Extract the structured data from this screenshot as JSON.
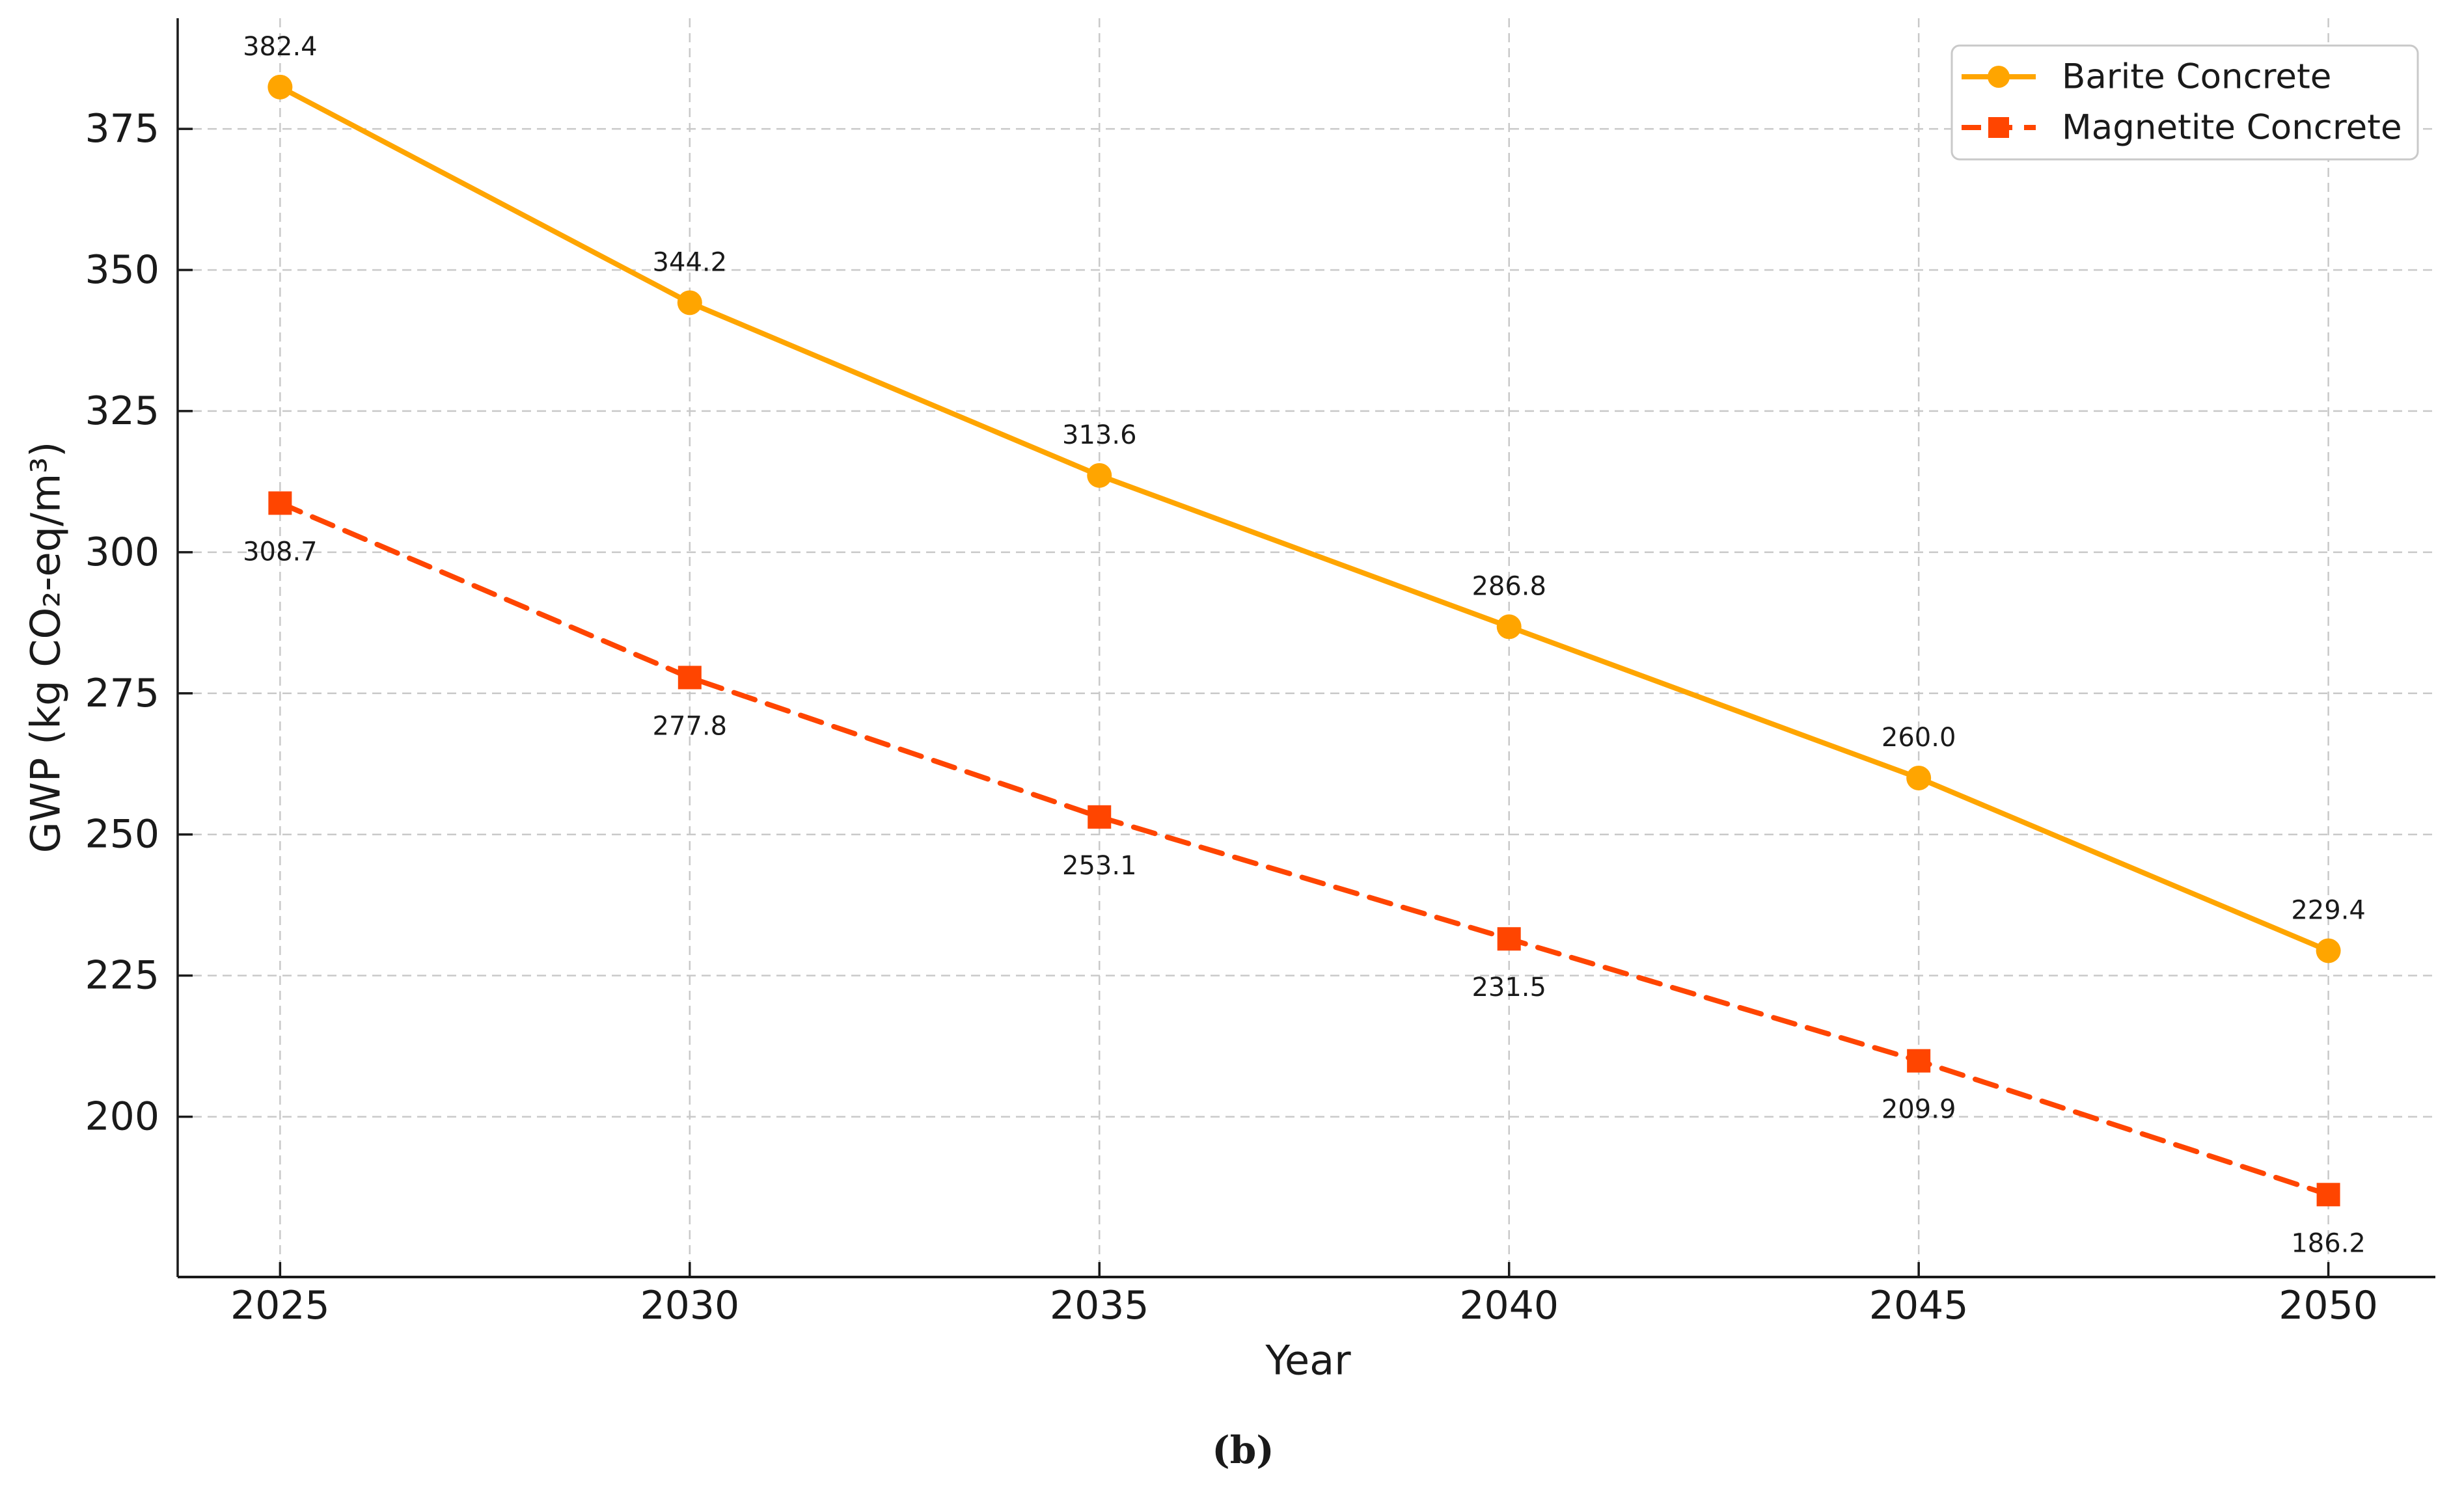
{
  "figure": {
    "caption": "(b)",
    "background": "#ffffff"
  },
  "chart_data": {
    "type": "line",
    "title": "",
    "xlabel": "Year",
    "ylabel": "GWP (kg CO₂-eq/m³)",
    "x": [
      2025,
      2030,
      2035,
      2040,
      2045,
      2050
    ],
    "xticks": [
      2025,
      2030,
      2035,
      2040,
      2045,
      2050
    ],
    "yticks": [
      200,
      225,
      250,
      275,
      300,
      325,
      350,
      375
    ],
    "xlim": [
      2023.75,
      2051.29
    ],
    "ylim": [
      171.6,
      394.6
    ],
    "grid": true,
    "grid_style": "dashed",
    "legend_position": "upper right",
    "series": [
      {
        "name": "Barite Concrete",
        "values": [
          382.4,
          344.2,
          313.6,
          286.8,
          260.0,
          229.4
        ],
        "color": "#FFA500",
        "line_style": "solid",
        "marker": "circle",
        "label_position": "above"
      },
      {
        "name": "Magnetite Concrete",
        "values": [
          308.7,
          277.8,
          253.1,
          231.5,
          209.9,
          186.2
        ],
        "color": "#FF4500",
        "line_style": "dashed",
        "marker": "square",
        "label_position": "below"
      }
    ]
  },
  "colors": {
    "grid": "#c9c9c9",
    "spine": "#1a1a1a",
    "tick_label": "#1a1a1a",
    "data_label": "#3a3a3a",
    "legend_border": "#c9c9c9",
    "legend_text": "#262626",
    "legend_fill": "#ffffff"
  }
}
